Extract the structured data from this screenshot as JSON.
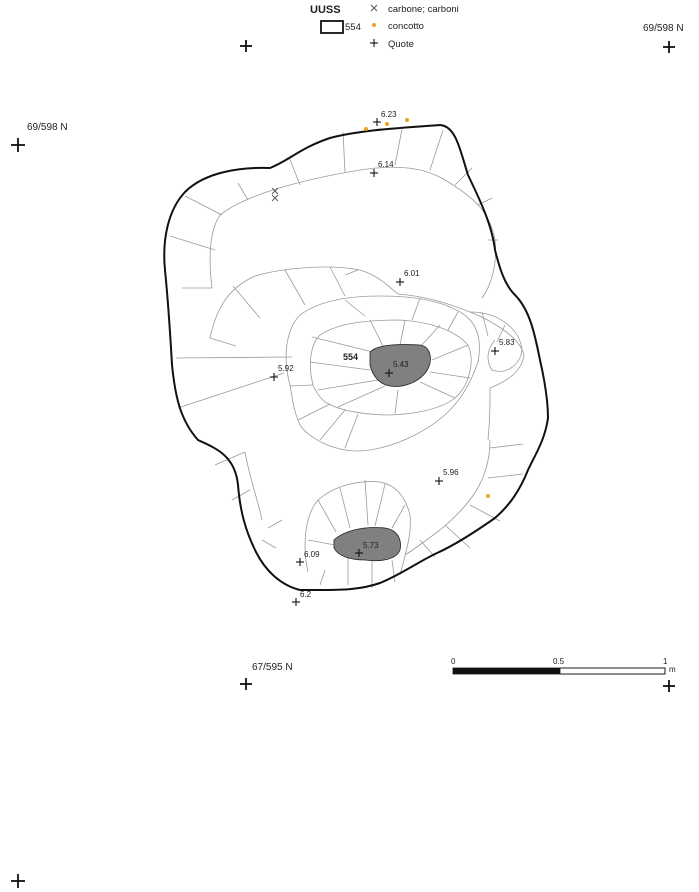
{
  "legend": {
    "title": "UUSS",
    "unit_label": "554",
    "items": [
      {
        "label": "carbone; carboni",
        "symbol": "x-cross"
      },
      {
        "label": "concotto",
        "symbol": "orange-dot",
        "color": "#f0a020"
      },
      {
        "label": "Quote",
        "symbol": "plus-cross"
      }
    ]
  },
  "grid_labels": {
    "top_right": "69/598 N",
    "left": "69/598 N",
    "bottom": "67/595 N"
  },
  "feature": {
    "label": "554",
    "fill": "#808080",
    "outline": "#111111"
  },
  "elevations": [
    "6.23",
    "6.14",
    "6.01",
    "5.83",
    "5.43",
    "5.92",
    "5.96",
    "6.09",
    "5.73",
    "6.2"
  ],
  "scale_bar": {
    "labels": [
      "0",
      "0.5",
      "1"
    ],
    "unit": "m"
  }
}
